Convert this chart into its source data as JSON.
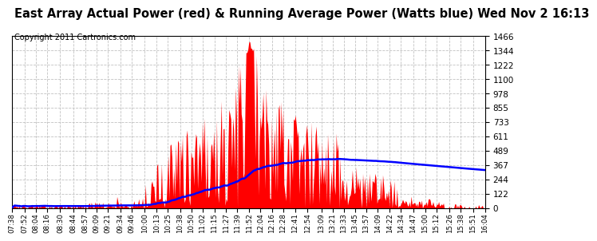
{
  "title": "East Array Actual Power (red) & Running Average Power (Watts blue) Wed Nov 2 16:13",
  "copyright": "Copyright 2011 Cartronics.com",
  "ylim": [
    0,
    1466.4
  ],
  "yticks": [
    0.0,
    122.2,
    244.4,
    366.6,
    488.8,
    611.0,
    733.2,
    855.4,
    977.6,
    1099.8,
    1222.0,
    1344.2,
    1466.4
  ],
  "actual_color": "red",
  "average_color": "blue",
  "background_color": "white",
  "grid_color": "#bbbbbb",
  "title_fontsize": 10.5,
  "copyright_fontsize": 7,
  "x_tick_labels": [
    "07:38",
    "07:52",
    "08:04",
    "08:16",
    "08:30",
    "08:44",
    "08:57",
    "09:09",
    "09:21",
    "09:34",
    "09:46",
    "10:00",
    "10:13",
    "10:25",
    "10:38",
    "10:50",
    "11:02",
    "11:15",
    "11:27",
    "11:39",
    "11:52",
    "12:04",
    "12:16",
    "12:28",
    "12:41",
    "12:54",
    "13:09",
    "13:21",
    "13:33",
    "13:45",
    "13:57",
    "14:09",
    "14:22",
    "14:34",
    "14:47",
    "15:00",
    "15:12",
    "15:26",
    "15:38",
    "15:51",
    "16:04"
  ]
}
